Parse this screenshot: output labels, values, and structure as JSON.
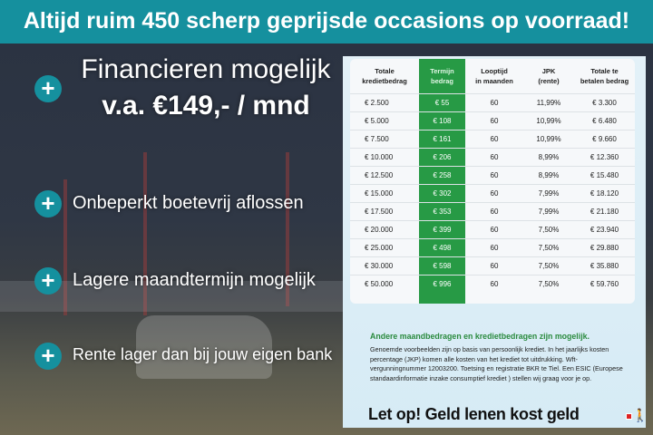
{
  "banner": "Altijd ruim 450 scherp geprijsde occasions op voorraad!",
  "features": {
    "financing_line1": "Financieren mogelijk",
    "financing_line2": "v.a. €149,- / mnd",
    "items": [
      "Onbeperkt boetevrij aflossen",
      "Lagere maandtermijn mogelijk",
      "Rente lager dan bij jouw eigen bank"
    ]
  },
  "table": {
    "headers": [
      [
        "Totale",
        "kredietbedrag"
      ],
      [
        "Termijn",
        "bedrag"
      ],
      [
        "Looptijd",
        "in maanden"
      ],
      [
        "JPK",
        "(rente)"
      ],
      [
        "Totale te",
        "betalen bedrag"
      ]
    ],
    "rows": [
      [
        "€ 2.500",
        "€ 55",
        "60",
        "11,99%",
        "€ 3.300"
      ],
      [
        "€ 5.000",
        "€ 108",
        "60",
        "10,99%",
        "€ 6.480"
      ],
      [
        "€ 7.500",
        "€ 161",
        "60",
        "10,99%",
        "€ 9.660"
      ],
      [
        "€ 10.000",
        "€ 206",
        "60",
        "8,99%",
        "€ 12.360"
      ],
      [
        "€ 12.500",
        "€ 258",
        "60",
        "8,99%",
        "€ 15.480"
      ],
      [
        "€ 15.000",
        "€ 302",
        "60",
        "7,99%",
        "€ 18.120"
      ],
      [
        "€ 17.500",
        "€ 353",
        "60",
        "7,99%",
        "€ 21.180"
      ],
      [
        "€ 20.000",
        "€ 399",
        "60",
        "7,50%",
        "€ 23.940"
      ],
      [
        "€ 25.000",
        "€ 498",
        "60",
        "7,50%",
        "€ 29.880"
      ],
      [
        "€ 30.000",
        "€ 598",
        "60",
        "7,50%",
        "€ 35.880"
      ],
      [
        "€ 50.000",
        "€ 996",
        "60",
        "7,50%",
        "€ 59.760"
      ]
    ]
  },
  "note_heading": "Andere maandbedragen en kredietbedragen zijn mogelijk.",
  "note_text": "Genoemde voorbeelden zijn op basis van persoonlijk krediet. In het jaarlijks kosten percentage (JKP) komen alle kosten van het krediet tot uitdrukking. Wft-vergunningnummer 12003200. Toetsing en registratie BKR te Tiel. Een ESIC (Europese standaardinformatie inzake consumptief krediet ) stellen wij graag voor je op.",
  "warning": "Let op! Geld lenen kost geld",
  "colors": {
    "teal": "#15909e",
    "green": "#279a45"
  }
}
